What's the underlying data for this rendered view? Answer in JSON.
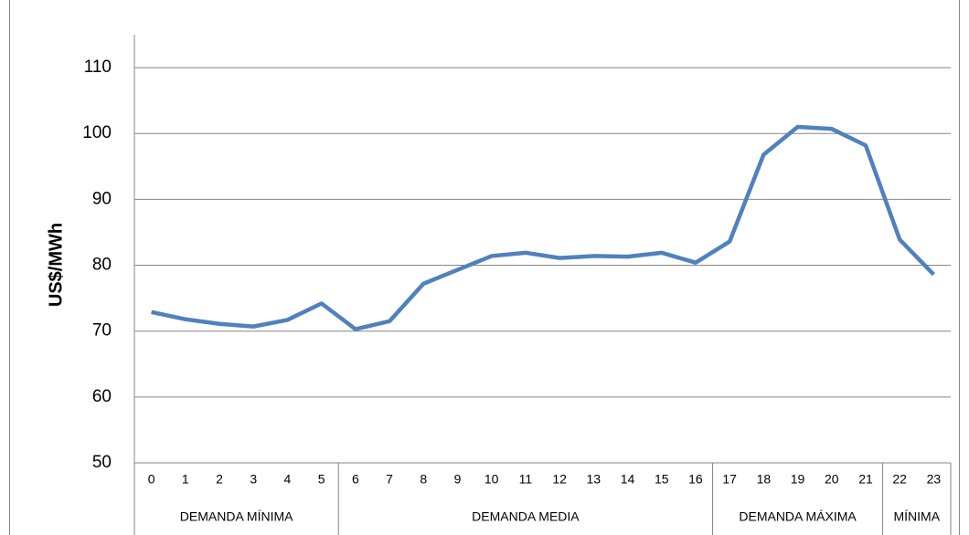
{
  "chart_data": {
    "type": "line",
    "y_label": "US$/MWh",
    "groups": [
      {
        "label": "DEMANDA MÍNIMA",
        "categories": [
          "0",
          "1",
          "2",
          "3",
          "4",
          "5"
        ]
      },
      {
        "label": "DEMANDA MEDIA",
        "categories": [
          "6",
          "7",
          "8",
          "9",
          "10",
          "11",
          "12",
          "13",
          "14",
          "15",
          "16"
        ]
      },
      {
        "label": "DEMANDA MÁXIMA",
        "categories": [
          "17",
          "18",
          "19",
          "20",
          "21"
        ]
      },
      {
        "label": "MÍNIMA",
        "categories": [
          "22",
          "23"
        ]
      }
    ],
    "series": [
      {
        "color": "#4f81bd",
        "values": [
          72.9,
          71.8,
          71.1,
          70.7,
          71.7,
          74.2,
          70.3,
          71.5,
          77.2,
          79.3,
          81.4,
          81.9,
          81.1,
          81.4,
          81.3,
          81.9,
          80.4,
          83.6,
          96.8,
          101,
          100.7,
          98.2,
          83.9,
          78.6
        ]
      }
    ],
    "ylim": [
      50,
      115
    ],
    "yticks": [
      50,
      60,
      70,
      80,
      90,
      100,
      110
    ],
    "grid": true
  }
}
